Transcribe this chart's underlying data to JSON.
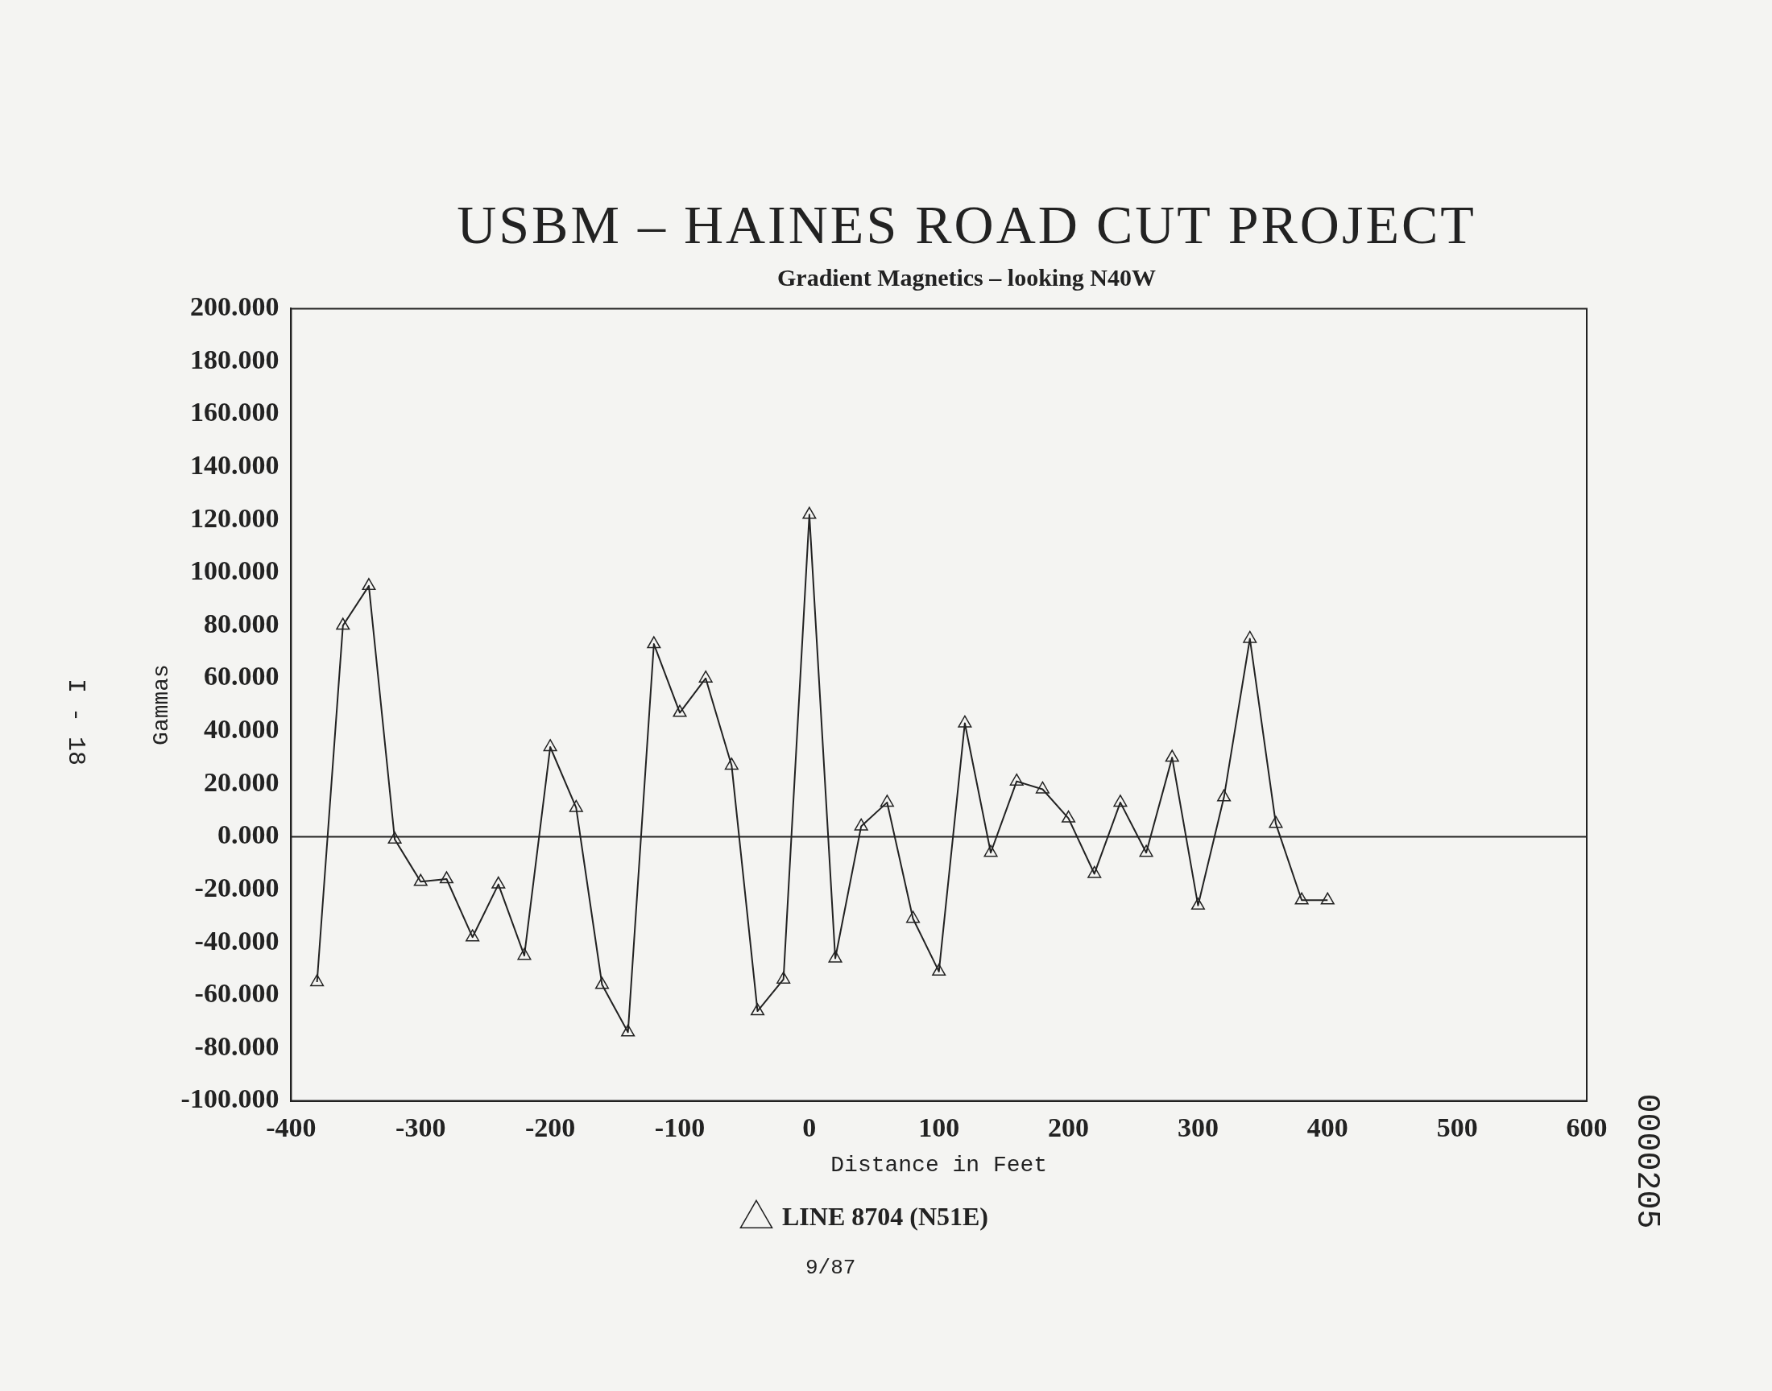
{
  "chart_data": {
    "type": "line",
    "title": "USBM – HAINES ROAD CUT PROJECT",
    "subtitle": "Gradient Magnetics – looking N40W",
    "xlabel": "Distance in Feet",
    "ylabel": "Gammas",
    "x": [
      -380,
      -360,
      -340,
      -320,
      -300,
      -280,
      -260,
      -240,
      -220,
      -200,
      -180,
      -160,
      -140,
      -120,
      -100,
      -80,
      -60,
      -40,
      -20,
      0,
      20,
      40,
      60,
      80,
      100,
      120,
      140,
      160,
      180,
      200,
      220,
      240,
      260,
      280,
      300,
      320,
      340,
      360,
      380,
      400
    ],
    "series": [
      {
        "name": "LINE 8704 (N51E)",
        "color": "#222222",
        "values": [
          -55,
          80,
          95,
          -1,
          -17,
          -16,
          -38,
          -18,
          -45,
          34,
          11,
          -56,
          -74,
          73,
          47,
          60,
          27,
          -66,
          -54,
          122,
          -46,
          4,
          13,
          -31,
          -51,
          43,
          -6,
          21,
          18,
          7,
          -14,
          13,
          -6,
          30,
          -26,
          15,
          75,
          5,
          -24,
          -24
        ]
      }
    ],
    "xlim": [
      -400,
      600
    ],
    "xticks": [
      -400,
      -300,
      -200,
      -100,
      0,
      100,
      200,
      300,
      400,
      500,
      600
    ],
    "ylim": [
      -100,
      200
    ],
    "yticks": [
      {
        "value": -100,
        "label": "-100.000"
      },
      {
        "value": -80,
        "label": "-80.000"
      },
      {
        "value": -60,
        "label": "-60.000"
      },
      {
        "value": -40,
        "label": "-40.000"
      },
      {
        "value": -20,
        "label": "-20.000"
      },
      {
        "value": 0,
        "label": "0.000"
      },
      {
        "value": 20,
        "label": "20.000"
      },
      {
        "value": 40,
        "label": "40.000"
      },
      {
        "value": 60,
        "label": "60.000"
      },
      {
        "value": 80,
        "label": "80.000"
      },
      {
        "value": 100,
        "label": "100.000"
      },
      {
        "value": 120,
        "label": "120.000"
      },
      {
        "value": 140,
        "label": "140.000"
      },
      {
        "value": 160,
        "label": "160.000"
      },
      {
        "value": 180,
        "label": "180.000"
      },
      {
        "value": 200,
        "label": "200.000"
      }
    ],
    "ref_lines": [
      {
        "axis": "y",
        "value": 0,
        "color": "#222222"
      }
    ],
    "grid": false,
    "legend": "bottom",
    "marker": "triangle",
    "line_style": "solid",
    "annotations": [
      "9/87",
      "I - 18",
      "0000205"
    ]
  }
}
